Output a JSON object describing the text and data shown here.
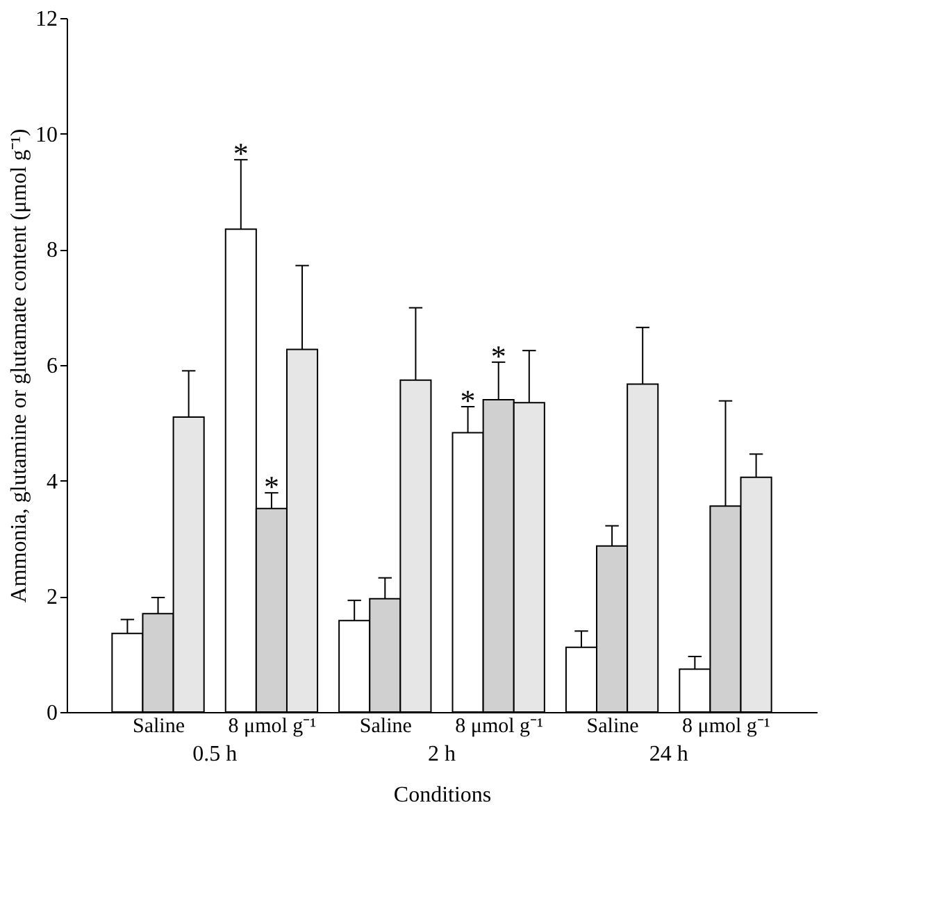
{
  "chart_data": {
    "type": "bar",
    "xlabel": "Conditions",
    "ylabel": "Ammonia, glutamine or glutamate content (μmol g⁻¹)",
    "categories": [
      "Saline",
      "8 μmol g⁻¹",
      "Saline",
      "8 μmol g⁻¹",
      "Saline",
      "8 μmol g⁻¹"
    ],
    "series": [
      {
        "color": "#ffffff",
        "values": [
          1.36,
          8.35,
          1.58,
          4.83,
          1.12,
          0.74
        ],
        "errors": [
          [
            1.36,
            1.6
          ],
          [
            8.35,
            9.55
          ],
          [
            1.58,
            1.93
          ],
          [
            4.83,
            5.28
          ],
          [
            1.12,
            1.4
          ],
          [
            0.74,
            0.96
          ]
        ],
        "value_labels": [
          null,
          "*",
          null,
          "*",
          null,
          null
        ]
      },
      {
        "color": "#d0d0d0",
        "values": [
          1.7,
          3.52,
          1.96,
          5.4,
          2.87,
          3.56
        ],
        "errors": [
          [
            1.7,
            1.98
          ],
          [
            3.52,
            3.79
          ],
          [
            1.96,
            2.32
          ],
          [
            5.4,
            6.05
          ],
          [
            2.87,
            3.22
          ],
          [
            3.56,
            5.38
          ]
        ],
        "value_labels": [
          null,
          "*",
          null,
          "*",
          null,
          null
        ]
      },
      {
        "color": "#e6e6e6",
        "values": [
          5.1,
          6.27,
          5.74,
          5.35,
          5.67,
          4.06
        ],
        "errors": [
          [
            5.1,
            5.9
          ],
          [
            6.27,
            7.72
          ],
          [
            5.74,
            6.99
          ],
          [
            5.35,
            6.25
          ],
          [
            5.67,
            6.65
          ],
          [
            4.06,
            4.46
          ]
        ]
      }
    ],
    "ylim": [
      0,
      12
    ],
    "yticks": [
      0,
      2,
      4,
      6,
      8,
      10,
      12
    ],
    "annotations": [
      "0.5 h",
      "2 h",
      "24 h"
    ]
  }
}
